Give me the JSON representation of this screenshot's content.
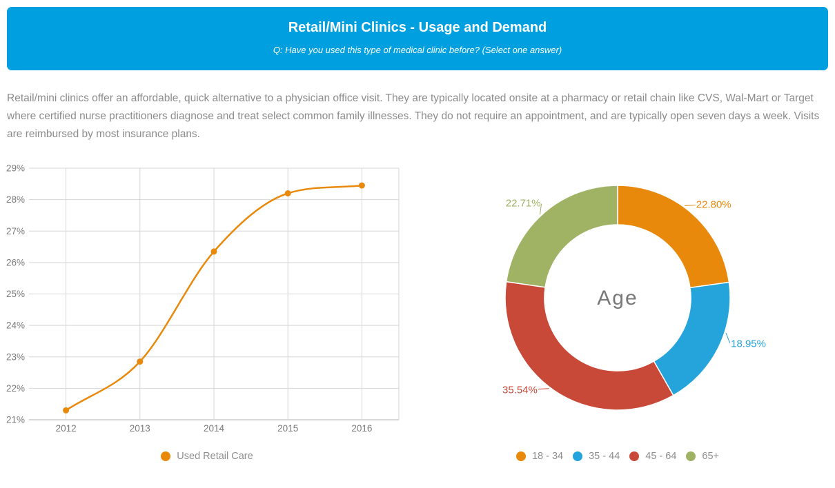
{
  "header": {
    "title": "Retail/Mini Clinics - Usage and Demand",
    "question": "Q: Have you used this type of medical clinic before? (Select one answer)",
    "background_color": "#00A0E0",
    "text_color": "#FFFFFF"
  },
  "description": "Retail/mini clinics offer an affordable, quick alternative to a physician office visit. They are typically located onsite at a pharmacy or retail chain like CVS, Wal-Mart or Target where certified nurse practitioners diagnose and treat select common family illnesses. They do not require an appointment, and are typically open seven days a week. Visits are reimbursed by most insurance plans.",
  "chart_data": [
    {
      "type": "line",
      "title": "",
      "categories": [
        "2012",
        "2013",
        "2014",
        "2015",
        "2016"
      ],
      "series": [
        {
          "name": "Used Retail Care",
          "color": "#E8890C",
          "values": [
            21.3,
            22.85,
            26.35,
            28.2,
            28.45
          ]
        }
      ],
      "xlabel": "",
      "ylabel": "",
      "ylim": [
        21,
        29
      ],
      "ytick_labels": [
        "21%",
        "22%",
        "23%",
        "24%",
        "25%",
        "26%",
        "27%",
        "28%",
        "29%"
      ],
      "grid": true,
      "smooth": true,
      "marker": "circle",
      "legend_position": "bottom",
      "grid_color": "#D6D6D6",
      "axis_line_color": "#B0B0B0",
      "tick_label_color": "#7A7A7A"
    },
    {
      "type": "pie",
      "donut": true,
      "center_label": "Age",
      "center_label_color": "#787878",
      "legend_position": "bottom",
      "slices": [
        {
          "label": "18 - 34",
          "value": 22.8,
          "display": "22.80%",
          "color": "#E8890C",
          "label_angle_deg": 40
        },
        {
          "label": "35 - 44",
          "value": 18.95,
          "display": "18.95%",
          "color": "#25A3DB",
          "label_angle_deg": 112
        },
        {
          "label": "45 - 64",
          "value": 35.54,
          "display": "35.54%",
          "color": "#C94938",
          "label_angle_deg": 221
        },
        {
          "label": "65+",
          "value": 22.71,
          "display": "22.71%",
          "color": "#A0B264",
          "label_angle_deg": 321
        }
      ]
    }
  ]
}
